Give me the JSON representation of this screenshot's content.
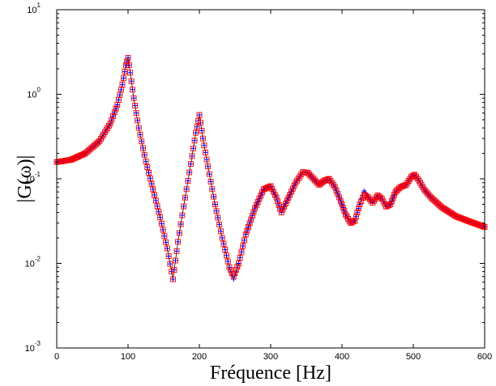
{
  "chart_data": {
    "type": "line",
    "title": "",
    "xlabel": "Fréquence [Hz]",
    "ylabel": "|G(ω)|",
    "xlim": [
      0,
      600
    ],
    "ylim": [
      0.001,
      10
    ],
    "yscale": "log",
    "grid": false,
    "legend": "none",
    "x_ticks": [
      "0",
      "100",
      "200",
      "300",
      "400",
      "500",
      "600"
    ],
    "y_ticks": [
      {
        "base": "10",
        "exp": "-3",
        "value": 0.001
      },
      {
        "base": "10",
        "exp": "-2",
        "value": 0.01
      },
      {
        "base": "10",
        "exp": "-1",
        "value": 0.1
      },
      {
        "base": "10",
        "exp": "0",
        "value": 1
      },
      {
        "base": "10",
        "exp": "1",
        "value": 10
      }
    ],
    "colors": {
      "line": "#000000",
      "plus_marker": "#0000ff",
      "square_marker": "#ff0000"
    },
    "series": [
      {
        "marker": "plus",
        "color": "#0000ff",
        "points": [
          [
            0,
            0.158
          ],
          [
            20,
            0.168
          ],
          [
            40,
            0.2
          ],
          [
            60,
            0.28
          ],
          [
            75,
            0.45
          ],
          [
            85,
            0.75
          ],
          [
            92,
            1.3
          ],
          [
            97,
            2.2
          ],
          [
            100,
            2.7
          ],
          [
            103,
            1.8
          ],
          [
            108,
            0.9
          ],
          [
            115,
            0.4
          ],
          [
            125,
            0.16
          ],
          [
            135,
            0.075
          ],
          [
            145,
            0.035
          ],
          [
            155,
            0.015
          ],
          [
            163,
            0.0065
          ],
          [
            170,
            0.018
          ],
          [
            180,
            0.06
          ],
          [
            188,
            0.15
          ],
          [
            195,
            0.35
          ],
          [
            200,
            0.57
          ],
          [
            205,
            0.3
          ],
          [
            212,
            0.14
          ],
          [
            222,
            0.05
          ],
          [
            232,
            0.02
          ],
          [
            242,
            0.009
          ],
          [
            248,
            0.0065
          ],
          [
            255,
            0.01
          ],
          [
            265,
            0.022
          ],
          [
            278,
            0.045
          ],
          [
            290,
            0.075
          ],
          [
            300,
            0.082
          ],
          [
            308,
            0.06
          ],
          [
            315,
            0.04
          ],
          [
            325,
            0.06
          ],
          [
            335,
            0.09
          ],
          [
            345,
            0.12
          ],
          [
            352,
            0.118
          ],
          [
            360,
            0.1
          ],
          [
            368,
            0.085
          ],
          [
            375,
            0.095
          ],
          [
            382,
            0.1
          ],
          [
            390,
            0.08
          ],
          [
            398,
            0.055
          ],
          [
            405,
            0.038
          ],
          [
            412,
            0.03
          ],
          [
            418,
            0.032
          ],
          [
            425,
            0.05
          ],
          [
            431,
            0.072
          ],
          [
            437,
            0.06
          ],
          [
            443,
            0.052
          ],
          [
            450,
            0.064
          ],
          [
            456,
            0.058
          ],
          [
            462,
            0.047
          ],
          [
            468,
            0.05
          ],
          [
            475,
            0.07
          ],
          [
            482,
            0.08
          ],
          [
            490,
            0.085
          ],
          [
            497,
            0.105
          ],
          [
            502,
            0.112
          ],
          [
            508,
            0.095
          ],
          [
            515,
            0.075
          ],
          [
            525,
            0.06
          ],
          [
            540,
            0.046
          ],
          [
            560,
            0.036
          ],
          [
            580,
            0.031
          ],
          [
            600,
            0.027
          ]
        ]
      },
      {
        "marker": "square",
        "color": "#ff0000",
        "points": [
          [
            0,
            0.158
          ],
          [
            20,
            0.168
          ],
          [
            40,
            0.2
          ],
          [
            60,
            0.28
          ],
          [
            75,
            0.45
          ],
          [
            85,
            0.75
          ],
          [
            92,
            1.3
          ],
          [
            97,
            2.2
          ],
          [
            100,
            2.7
          ],
          [
            103,
            1.8
          ],
          [
            108,
            0.9
          ],
          [
            115,
            0.4
          ],
          [
            125,
            0.16
          ],
          [
            135,
            0.075
          ],
          [
            145,
            0.035
          ],
          [
            155,
            0.015
          ],
          [
            163,
            0.0065
          ],
          [
            170,
            0.018
          ],
          [
            180,
            0.06
          ],
          [
            188,
            0.15
          ],
          [
            195,
            0.35
          ],
          [
            200,
            0.57
          ],
          [
            205,
            0.3
          ],
          [
            212,
            0.14
          ],
          [
            222,
            0.05
          ],
          [
            232,
            0.02
          ],
          [
            242,
            0.009
          ],
          [
            248,
            0.007
          ],
          [
            255,
            0.01
          ],
          [
            265,
            0.022
          ],
          [
            278,
            0.045
          ],
          [
            290,
            0.075
          ],
          [
            300,
            0.082
          ],
          [
            308,
            0.06
          ],
          [
            315,
            0.04
          ],
          [
            325,
            0.06
          ],
          [
            335,
            0.09
          ],
          [
            345,
            0.12
          ],
          [
            352,
            0.118
          ],
          [
            360,
            0.1
          ],
          [
            368,
            0.085
          ],
          [
            375,
            0.095
          ],
          [
            382,
            0.1
          ],
          [
            390,
            0.08
          ],
          [
            398,
            0.055
          ],
          [
            405,
            0.038
          ],
          [
            412,
            0.03
          ],
          [
            418,
            0.032
          ],
          [
            425,
            0.05
          ],
          [
            431,
            0.065
          ],
          [
            437,
            0.06
          ],
          [
            443,
            0.052
          ],
          [
            450,
            0.064
          ],
          [
            456,
            0.058
          ],
          [
            462,
            0.047
          ],
          [
            468,
            0.05
          ],
          [
            475,
            0.07
          ],
          [
            482,
            0.08
          ],
          [
            490,
            0.085
          ],
          [
            497,
            0.105
          ],
          [
            502,
            0.112
          ],
          [
            508,
            0.095
          ],
          [
            515,
            0.075
          ],
          [
            525,
            0.06
          ],
          [
            540,
            0.046
          ],
          [
            560,
            0.036
          ],
          [
            580,
            0.031
          ],
          [
            600,
            0.027
          ]
        ]
      }
    ]
  }
}
